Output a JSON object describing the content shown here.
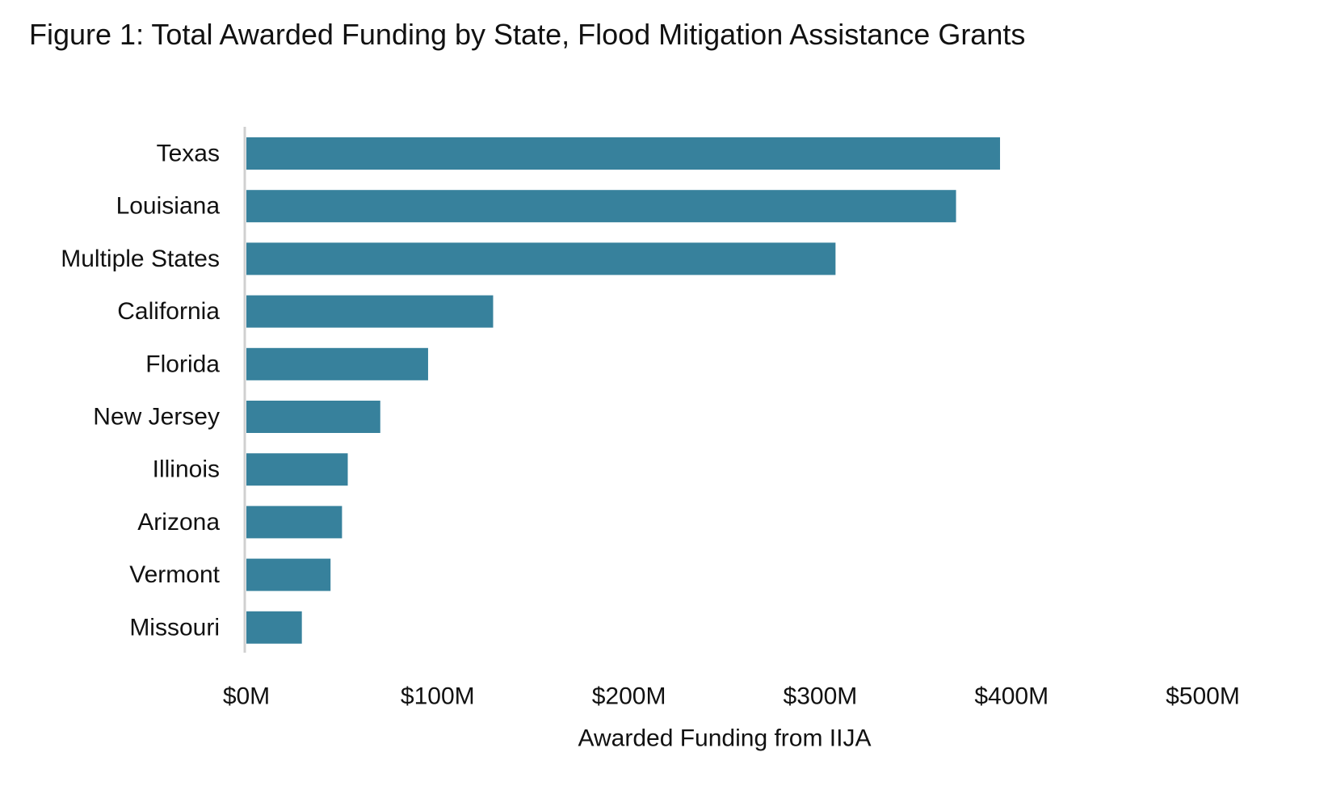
{
  "title": "Figure 1: Total Awarded Funding by State, Flood Mitigation Assistance Grants",
  "colors": {
    "bar": "#37819C",
    "axis": "#D0D0D0",
    "text": "#111111",
    "background": "#FFFFFF"
  },
  "chart_data": {
    "type": "bar",
    "orientation": "horizontal",
    "title": "Figure 1: Total Awarded Funding by State, Flood Mitigation Assistance Grants",
    "categories": [
      "Texas",
      "Louisiana",
      "Multiple States",
      "California",
      "Florida",
      "New Jersey",
      "Illinois",
      "Arizona",
      "Vermont",
      "Missouri"
    ],
    "values": [
      394,
      371,
      308,
      129,
      95,
      70,
      53,
      50,
      44,
      29
    ],
    "unit": "$M",
    "xlabel": "Awarded Funding from IIJA",
    "ylabel": "",
    "xlim": [
      0,
      500
    ],
    "xticks": [
      0,
      100,
      200,
      300,
      400,
      500
    ],
    "xtick_labels": [
      "$0M",
      "$100M",
      "$200M",
      "$300M",
      "$400M",
      "$500M"
    ],
    "grid": false,
    "legend": "none"
  }
}
